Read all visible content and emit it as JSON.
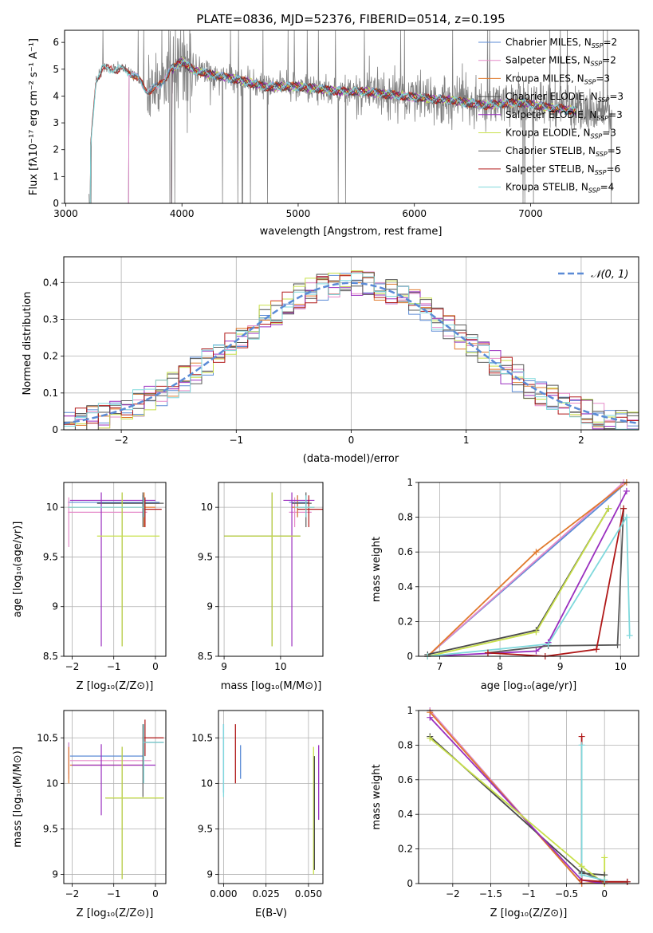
{
  "figure_title": "PLATE=0836, MJD=52376, FIBERID=0514, z=0.195",
  "colors": {
    "chabrier_miles": "#5b8bd6",
    "salpeter_miles": "#e58ac9",
    "kroupa_miles": "#e07a2c",
    "chabrier_elodie": "#4a4a4a",
    "salpeter_elodie": "#9a2fbf",
    "kroupa_elodie": "#c8e04a",
    "chabrier_stelib": "#5a5a5a",
    "salpeter_stelib": "#b01818",
    "kroupa_stelib": "#7fd8dc",
    "data": "#808080",
    "normal": "#5b8bd6",
    "grid": "#b0b0b0"
  },
  "legend": [
    {
      "label": "Chabrier MILES, N",
      "sub": "SSP",
      "tail": "=2",
      "color": "#5b8bd6"
    },
    {
      "label": "Salpeter MILES, N",
      "sub": "SSP",
      "tail": "=2",
      "color": "#e58ac9"
    },
    {
      "label": "Kroupa MILES, N",
      "sub": "SSP",
      "tail": "=3",
      "color": "#e07a2c"
    },
    {
      "label": "Chabrier ELODIE, N",
      "sub": "SSP",
      "tail": "=3",
      "color": "#4a4a4a"
    },
    {
      "label": "Salpeter ELODIE, N",
      "sub": "SSP",
      "tail": "=3",
      "color": "#9a2fbf"
    },
    {
      "label": "Kroupa ELODIE, N",
      "sub": "SSP",
      "tail": "=3",
      "color": "#c8e04a"
    },
    {
      "label": "Chabrier STELIB, N",
      "sub": "SSP",
      "tail": "=5",
      "color": "#5a5a5a"
    },
    {
      "label": "Salpeter STELIB, N",
      "sub": "SSP",
      "tail": "=6",
      "color": "#b01818"
    },
    {
      "label": "Kroupa STELIB, N",
      "sub": "SSP",
      "tail": "=4",
      "color": "#7fd8dc"
    }
  ],
  "chart_data": [
    {
      "id": "spectrum",
      "type": "line",
      "title": "PLATE=0836, MJD=52376, FIBERID=0514, z=0.195",
      "xlabel": "wavelength [Angstrom, rest frame]",
      "ylabel": "Flux [fλ10⁻¹⁷ erg cm⁻² s⁻¹ A⁻¹]",
      "xlim": [
        2990,
        7930
      ],
      "ylim": [
        0,
        6.45
      ],
      "xticks": [
        3000,
        4000,
        5000,
        6000,
        7000
      ],
      "yticks": [
        0,
        1,
        2,
        3,
        4,
        5,
        6
      ],
      "model_continuum": {
        "x": [
          3210,
          3260,
          3320,
          3400,
          3500,
          3600,
          3700,
          3800,
          3900,
          4000,
          4100,
          4300,
          4500,
          4700,
          5000,
          5300,
          5600,
          6000,
          6300,
          6600,
          6900,
          7200,
          7400
        ],
        "y": [
          1.9,
          4.6,
          5.05,
          5.0,
          5.0,
          4.75,
          4.2,
          4.35,
          4.95,
          5.3,
          4.95,
          4.75,
          4.6,
          4.35,
          4.35,
          4.2,
          4.15,
          3.95,
          3.85,
          3.65,
          3.75,
          3.55,
          3.45
        ]
      },
      "model_start_wavelength": {
        "miles": 3540,
        "elodie": 3910,
        "stelib": 3210
      }
    },
    {
      "id": "residual-histogram",
      "type": "line",
      "xlabel": "(data-model)/error",
      "ylabel": "Normed distribution",
      "xlim": [
        -2.5,
        2.5
      ],
      "ylim": [
        0,
        0.47
      ],
      "xticks": [
        -2,
        -1,
        0,
        1,
        2
      ],
      "yticks": [
        0.0,
        0.1,
        0.2,
        0.3,
        0.4
      ],
      "legend_label": "𝒩(0, 1)",
      "legend_position": "upper right",
      "bin_width": 0.1,
      "gaussian": {
        "mu": 0,
        "sigma": 1
      }
    },
    {
      "id": "age-vs-z",
      "type": "scatter",
      "xlabel": "Z [log₁₀(Z/Z⊙)]",
      "ylabel": "age  [log₁₀(age/yr)]",
      "xlim": [
        -2.2,
        0.25
      ],
      "ylim": [
        8.5,
        10.25
      ],
      "xticks": [
        -2,
        -1,
        0
      ],
      "yticks": [
        8.5,
        9.0,
        9.5,
        10.0
      ],
      "errorbars": [
        {
          "model": "chabrier_miles",
          "x": [
            -2.1,
            0.1
          ],
          "y": [
            10.05,
            10.05
          ],
          "vx": -0.3,
          "vy": [
            9.9,
            10.12
          ]
        },
        {
          "model": "salpeter_miles",
          "x": [
            -2.1,
            -0.2
          ],
          "y": [
            9.95,
            9.95
          ],
          "vx": -2.08,
          "vy": [
            9.6,
            10.1
          ]
        },
        {
          "model": "kroupa_miles",
          "x": [
            -2.1,
            0.0
          ],
          "y": [
            10.0,
            10.0
          ],
          "vx": -0.27,
          "vy": [
            9.8,
            10.15
          ]
        },
        {
          "model": "chabrier_elodie",
          "x": [
            -1.4,
            0.1
          ],
          "y": [
            10.04,
            10.04
          ],
          "vx": -0.8,
          "vy": [
            8.6,
            10.15
          ]
        },
        {
          "model": "salpeter_elodie",
          "x": [
            -2.05,
            0.0
          ],
          "y": [
            10.07,
            10.07
          ],
          "vx": -1.3,
          "vy": [
            8.6,
            10.15
          ]
        },
        {
          "model": "kroupa_elodie",
          "x": [
            -1.4,
            0.1
          ],
          "y": [
            9.71,
            9.71
          ],
          "vx": -0.8,
          "vy": [
            8.6,
            10.15
          ]
        },
        {
          "model": "chabrier_stelib",
          "x": [
            -0.3,
            0.2
          ],
          "y": [
            10.04,
            10.04
          ],
          "vx": -0.3,
          "vy": [
            9.8,
            10.15
          ]
        },
        {
          "model": "salpeter_stelib",
          "x": [
            -0.3,
            0.15
          ],
          "y": [
            9.98,
            9.98
          ],
          "vx": -0.25,
          "vy": [
            9.8,
            10.1
          ]
        },
        {
          "model": "kroupa_stelib",
          "x": [
            -2.1,
            -0.3
          ],
          "y": [
            10.0,
            10.0
          ],
          "vx": -0.28,
          "vy": [
            9.9,
            10.1
          ]
        }
      ]
    },
    {
      "id": "age-vs-mass",
      "type": "scatter",
      "xlabel": "mass [log₁₀(M/M⊙)]",
      "ylabel": "",
      "xlim": [
        8.9,
        10.75
      ],
      "ylim": [
        8.5,
        10.25
      ],
      "xticks": [
        9,
        10
      ],
      "yticks": [
        8.5,
        9.0,
        9.5,
        10.0
      ],
      "errorbars": [
        {
          "model": "chabrier_miles",
          "x": [
            10.15,
            10.5
          ],
          "y": [
            10.05,
            10.05
          ],
          "vx": 10.3,
          "vy": [
            9.9,
            10.12
          ]
        },
        {
          "model": "salpeter_miles",
          "x": [
            10.15,
            10.55
          ],
          "y": [
            9.95,
            9.95
          ],
          "vx": 10.25,
          "vy": [
            9.8,
            10.1
          ]
        },
        {
          "model": "kroupa_miles",
          "x": [
            10.2,
            10.6
          ],
          "y": [
            10.0,
            10.0
          ],
          "vx": 10.3,
          "vy": [
            9.9,
            10.12
          ]
        },
        {
          "model": "chabrier_elodie",
          "x": [
            9.0,
            10.35
          ],
          "y": [
            9.71,
            9.71
          ],
          "vx": 9.85,
          "vy": [
            8.6,
            10.15
          ]
        },
        {
          "model": "salpeter_elodie",
          "x": [
            10.05,
            10.6
          ],
          "y": [
            10.07,
            10.07
          ],
          "vx": 10.2,
          "vy": [
            8.6,
            10.15
          ]
        },
        {
          "model": "kroupa_elodie",
          "x": [
            9.0,
            10.35
          ],
          "y": [
            9.71,
            9.71
          ],
          "vx": 9.85,
          "vy": [
            8.6,
            10.15
          ]
        },
        {
          "model": "chabrier_stelib",
          "x": [
            10.2,
            10.55
          ],
          "y": [
            10.04,
            10.04
          ],
          "vx": 10.45,
          "vy": [
            9.8,
            10.15
          ]
        },
        {
          "model": "salpeter_stelib",
          "x": [
            10.3,
            10.75
          ],
          "y": [
            9.98,
            9.98
          ],
          "vx": 10.5,
          "vy": [
            9.8,
            10.12
          ]
        },
        {
          "model": "kroupa_stelib",
          "x": [
            10.25,
            10.6
          ],
          "y": [
            10.0,
            10.0
          ],
          "vx": 10.45,
          "vy": [
            9.9,
            10.12
          ]
        }
      ]
    },
    {
      "id": "mass-weight-vs-age",
      "type": "line",
      "xlabel": "age  [log₁₀(age/yr)]",
      "ylabel": "mass weight",
      "xlim": [
        6.65,
        10.3
      ],
      "ylim": [
        0,
        1.0
      ],
      "xticks": [
        7,
        8,
        9,
        10
      ],
      "yticks": [
        0.0,
        0.2,
        0.4,
        0.6,
        0.8,
        1.0
      ],
      "series": [
        {
          "model": "chabrier_miles",
          "x": [
            6.8,
            10.1
          ],
          "y": [
            0.0,
            1.0
          ]
        },
        {
          "model": "salpeter_miles",
          "x": [
            6.8,
            10.05
          ],
          "y": [
            0.0,
            1.0
          ]
        },
        {
          "model": "kroupa_miles",
          "x": [
            6.8,
            8.6,
            10.1
          ],
          "y": [
            0.0,
            0.6,
            1.0
          ]
        },
        {
          "model": "chabrier_elodie",
          "x": [
            6.8,
            8.6,
            9.8
          ],
          "y": [
            0.01,
            0.15,
            0.85
          ]
        },
        {
          "model": "salpeter_elodie",
          "x": [
            6.8,
            8.6,
            8.8,
            10.1
          ],
          "y": [
            0.0,
            0.03,
            0.08,
            0.95
          ]
        },
        {
          "model": "kroupa_elodie",
          "x": [
            6.8,
            8.6,
            9.8
          ],
          "y": [
            0.0,
            0.14,
            0.85
          ]
        },
        {
          "model": "chabrier_stelib",
          "x": [
            7.8,
            8.8,
            9.95,
            10.05
          ],
          "y": [
            0.02,
            0.06,
            0.065,
            0.85
          ]
        },
        {
          "model": "salpeter_stelib",
          "x": [
            7.8,
            8.75,
            9.6,
            10.05
          ],
          "y": [
            0.02,
            0.0,
            0.04,
            0.85
          ]
        },
        {
          "model": "kroupa_stelib",
          "x": [
            6.8,
            8.8,
            10.1,
            10.15
          ],
          "y": [
            0.0,
            0.07,
            0.8,
            0.12
          ]
        }
      ]
    },
    {
      "id": "mass-vs-z",
      "type": "scatter",
      "xlabel": "Z [log₁₀(Z/Z⊙)]",
      "ylabel": "mass [log₁₀(M/M⊙)]",
      "xlim": [
        -2.2,
        0.25
      ],
      "ylim": [
        8.9,
        10.8
      ],
      "xticks": [
        -2,
        -1,
        0
      ],
      "yticks": [
        9.0,
        9.5,
        10.0,
        10.5
      ],
      "errorbars": [
        {
          "model": "chabrier_miles",
          "x": [
            -2.05,
            -0.3
          ],
          "y": [
            10.3,
            10.3
          ],
          "vx": -2.08,
          "vy": [
            10.1,
            10.45
          ]
        },
        {
          "model": "salpeter_miles",
          "x": [
            -2.05,
            -0.1
          ],
          "y": [
            10.25,
            10.25
          ],
          "vx": -2.08,
          "vy": [
            10.05,
            10.45
          ]
        },
        {
          "model": "kroupa_miles",
          "x": [
            -2.05,
            -0.3
          ],
          "y": [
            10.2,
            10.2
          ],
          "vx": -2.08,
          "vy": [
            10.0,
            10.4
          ]
        },
        {
          "model": "chabrier_elodie",
          "x": [
            -1.2,
            0.2
          ],
          "y": [
            9.84,
            9.84
          ],
          "vx": -0.8,
          "vy": [
            8.95,
            10.4
          ]
        },
        {
          "model": "salpeter_elodie",
          "x": [
            -2.0,
            0.0
          ],
          "y": [
            10.2,
            10.2
          ],
          "vx": -1.3,
          "vy": [
            9.65,
            10.43
          ]
        },
        {
          "model": "kroupa_elodie",
          "x": [
            -1.2,
            0.2
          ],
          "y": [
            9.84,
            9.84
          ],
          "vx": -0.8,
          "vy": [
            8.95,
            10.4
          ]
        },
        {
          "model": "chabrier_stelib",
          "x": [
            -0.3,
            0.2
          ],
          "y": [
            10.45,
            10.45
          ],
          "vx": -0.3,
          "vy": [
            9.85,
            10.65
          ]
        },
        {
          "model": "salpeter_stelib",
          "x": [
            -0.3,
            0.2
          ],
          "y": [
            10.5,
            10.5
          ],
          "vx": -0.25,
          "vy": [
            10.3,
            10.7
          ]
        },
        {
          "model": "kroupa_stelib",
          "x": [
            -0.3,
            0.2
          ],
          "y": [
            10.45,
            10.45
          ],
          "vx": -0.28,
          "vy": [
            10.0,
            10.65
          ]
        }
      ]
    },
    {
      "id": "mass-vs-ebv",
      "type": "scatter",
      "xlabel": "E(B-V)",
      "ylabel": "",
      "xlim": [
        -0.003,
        0.0585
      ],
      "ylim": [
        8.9,
        10.8
      ],
      "xticks": [
        0.0,
        0.025,
        0.05
      ],
      "xticklabels": [
        "0.000",
        "0.025",
        "0.050"
      ],
      "yticks": [
        9.0,
        9.5,
        10.0,
        10.5
      ],
      "vlines": [
        {
          "model": "chabrier_miles",
          "x": 0.0,
          "y": [
            9.9,
            10.65
          ]
        },
        {
          "model": "kroupa_stelib",
          "x": 0.0,
          "y": [
            9.85,
            10.65
          ]
        },
        {
          "model": "salpeter_stelib",
          "x": 0.007,
          "y": [
            10.0,
            10.65
          ]
        },
        {
          "model": "chabrier_miles",
          "x": 0.01,
          "y": [
            10.05,
            10.42
          ]
        },
        {
          "model": "salpeter_elodie",
          "x": 0.056,
          "y": [
            9.6,
            10.42
          ]
        },
        {
          "model": "kroupa_elodie",
          "x": 0.053,
          "y": [
            9.0,
            10.4
          ]
        },
        {
          "model": "chabrier_elodie",
          "x": 0.0535,
          "y": [
            9.05,
            10.3
          ]
        }
      ]
    },
    {
      "id": "mass-weight-vs-z",
      "type": "line",
      "xlabel": "Z [log₁₀(Z/Z⊙)]",
      "ylabel": "mass weight",
      "xlim": [
        -2.45,
        0.45
      ],
      "ylim": [
        0,
        1.0
      ],
      "xticks": [
        -2.0,
        -1.5,
        -1.0,
        -0.5,
        0.0
      ],
      "yticks": [
        0.0,
        0.2,
        0.4,
        0.6,
        0.8,
        1.0
      ],
      "series": [
        {
          "model": "chabrier_miles",
          "x": [
            -2.3,
            -0.3
          ],
          "y": [
            1.0,
            0.0
          ]
        },
        {
          "model": "salpeter_miles",
          "x": [
            -2.3,
            -0.3
          ],
          "y": [
            1.0,
            0.0
          ]
        },
        {
          "model": "kroupa_miles",
          "x": [
            -2.3,
            -0.3,
            0.0
          ],
          "y": [
            0.99,
            0.0,
            0.01
          ]
        },
        {
          "model": "chabrier_elodie",
          "x": [
            -2.3,
            -0.3,
            0.0
          ],
          "y": [
            0.85,
            0.06,
            0.05
          ]
        },
        {
          "model": "salpeter_elodie",
          "x": [
            -2.3,
            -0.3,
            0.0
          ],
          "y": [
            0.96,
            0.02,
            0.0
          ]
        },
        {
          "model": "kroupa_elodie",
          "x": [
            -2.3,
            -0.3,
            0.0,
            0.0
          ],
          "y": [
            0.84,
            0.1,
            0.0,
            0.15
          ]
        },
        {
          "model": "chabrier_stelib",
          "x": [
            -0.3,
            0.0,
            0.3
          ],
          "y": [
            0.07,
            0.01,
            0.01
          ]
        },
        {
          "model": "salpeter_stelib",
          "x": [
            -0.3,
            -0.3,
            0.0,
            0.3
          ],
          "y": [
            0.85,
            0.02,
            0.01,
            0.01
          ]
        },
        {
          "model": "kroupa_stelib",
          "x": [
            -0.3,
            -0.3,
            0.0
          ],
          "y": [
            0.8,
            0.05,
            0.02
          ]
        }
      ]
    }
  ]
}
